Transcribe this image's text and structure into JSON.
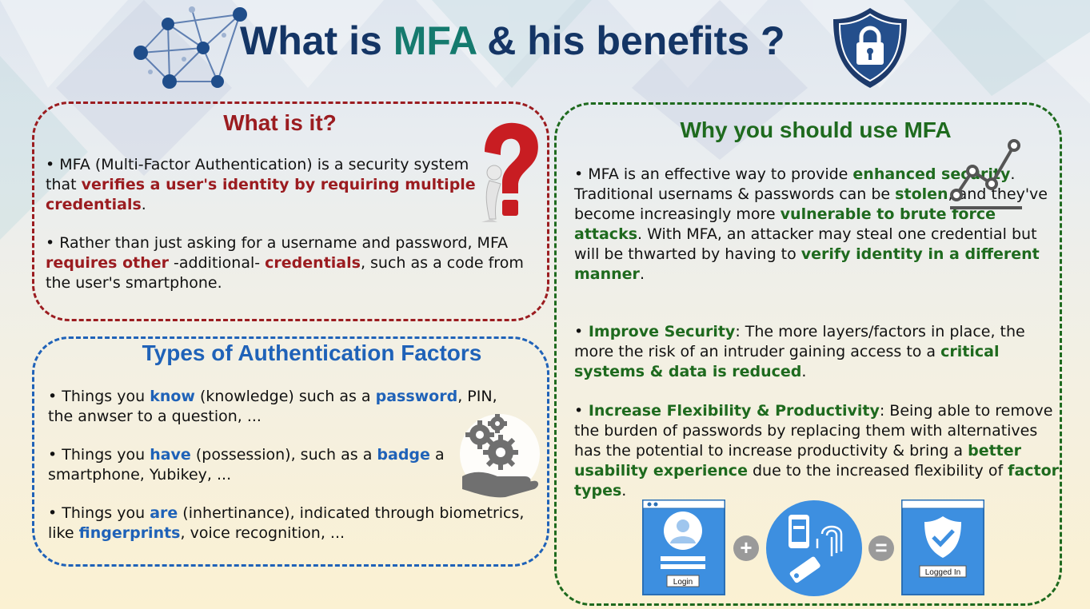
{
  "title": {
    "prefix": "What is ",
    "accent": "MFA",
    "suffix": " & his benefits ?"
  },
  "what_is_it": {
    "heading": "What is it?",
    "p1": {
      "bullet": "•",
      "t1": " MFA (Multi-Factor Authentication) is a security system that ",
      "b1": "verifies a user's identity by requiring multiple credentials",
      "t2": "."
    },
    "p2": {
      "bullet": "•",
      "t1": " Rather than just asking for a username and password, MFA ",
      "b1": "requires other",
      "t2": " -additional- ",
      "b2": "credentials",
      "t3": ", such as a code from the user's smartphone."
    }
  },
  "types": {
    "heading": "Types of Authentication Factors",
    "know": {
      "bullet": "•",
      "t1": " Things you ",
      "b1": "know",
      "t2": " (knowledge) such as a ",
      "b2": "password",
      "t3": ", PIN, the anwser to a question, ..."
    },
    "have": {
      "bullet": "•",
      "t1": " Things you ",
      "b1": "have",
      "t2": " (possession), such as a ",
      "b2": "badge",
      "t3": " a smartphone, Yubikey, ..."
    },
    "are": {
      "bullet": "•",
      "t1": " Things you ",
      "b1": "are",
      "t2": " (inhertinance), indicated through biometrics, like ",
      "b2": "fingerprints",
      "t3": ", voice recognition, ..."
    }
  },
  "why": {
    "heading": "Why you should use MFA",
    "p1": {
      "bullet": "•",
      "t1": " MFA is an effective way to provide ",
      "b1": "enhanced security",
      "t2": ". Traditional usernams & passwords can be ",
      "b2": "stolen",
      "t3": ", and they've become increasingly more ",
      "b3": "vulnerable to brute force attacks",
      "t4": ". With MFA, an attacker may steal one credential but will be thwarted by having to ",
      "b4": "verify identity in a different manner",
      "t5": "."
    },
    "p2": {
      "bullet": "•",
      "b1": " Improve Security",
      "t1": ": The more layers/factors in place, the more the risk of an intruder gaining access to a ",
      "b2": "critical systems & data is reduced",
      "t2": "."
    },
    "p3": {
      "bullet": "•",
      "b1": " Increase Flexibility & Productivity",
      "t1": ": Being able to remove the burden of passwords by replacing them with alternatives has the potential to increase productivity & bring a ",
      "b2": "better usability experience",
      "t2": " due to the increased flexibility of ",
      "b3": "factor types",
      "t3": "."
    }
  },
  "diagram": {
    "login_label": "Login",
    "logged_in_label": "Logged In",
    "plus": "+",
    "equals": "="
  },
  "icons": {
    "network": "network-graph-icon",
    "shield": "shield-lock-icon",
    "question": "question-mark-figure-icon",
    "chart": "line-chart-icon",
    "gears": "gears-hand-icon"
  },
  "colors": {
    "title": "#143565",
    "mfa_accent": "#157a6e",
    "red": "#9b1c20",
    "blue": "#1f62b8",
    "green": "#1e6a1e",
    "diagram_blue": "#3d8fe0"
  }
}
